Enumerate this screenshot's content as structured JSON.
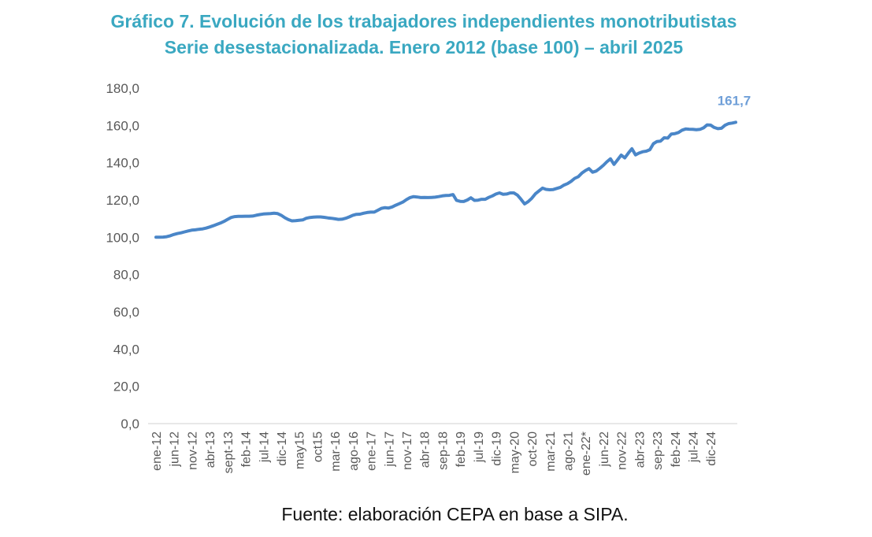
{
  "chart_data": {
    "type": "line",
    "title": "Gráfico 7. Evolución de los trabajadores independientes monotributistas",
    "subtitle": "Serie desestacionalizada. Enero 2012 (base 100) – abril 2025",
    "xlabel": "",
    "ylabel": "",
    "ylim": [
      0,
      180
    ],
    "y_ticks": [
      "0,0",
      "20,0",
      "40,0",
      "60,0",
      "80,0",
      "100,0",
      "120,0",
      "140,0",
      "160,0",
      "180,0"
    ],
    "x_tick_labels": [
      "ene-12",
      "jun-12",
      "nov-12",
      "abr-13",
      "sept-13",
      "feb-14",
      "jul-14",
      "dic-14",
      "may15",
      "oct15",
      "mar-16",
      "ago-16",
      "ene-17",
      "jun-17",
      "nov-17",
      "abr-18",
      "sep-18",
      "feb-19",
      "jul-19",
      "dic-19",
      "may-20",
      "oct-20",
      "mar-21",
      "ago-21",
      "ene-22*",
      "jun-22",
      "nov-22",
      "abr-23",
      "sep-23",
      "feb-24",
      "jul-24",
      "dic-24"
    ],
    "grid": false,
    "legend": "none",
    "series": [
      {
        "color": "#4a86c8",
        "values": [
          100.0,
          100.0,
          100.1,
          100.3,
          100.8,
          101.5,
          102.0,
          102.4,
          102.9,
          103.4,
          103.8,
          104.0,
          104.3,
          104.5,
          104.9,
          105.5,
          106.2,
          106.9,
          107.6,
          108.5,
          109.6,
          110.6,
          111.1,
          111.2,
          111.2,
          111.3,
          111.3,
          111.4,
          111.8,
          112.2,
          112.5,
          112.6,
          112.7,
          112.9,
          112.7,
          111.8,
          110.5,
          109.5,
          108.8,
          108.9,
          109.1,
          109.3,
          110.2,
          110.6,
          110.8,
          110.9,
          110.9,
          110.7,
          110.4,
          110.2,
          109.9,
          109.6,
          109.7,
          110.2,
          110.9,
          111.8,
          112.3,
          112.4,
          112.9,
          113.3,
          113.5,
          113.5,
          114.5,
          115.5,
          115.9,
          115.7,
          116.3,
          117.2,
          118.0,
          118.9,
          120.2,
          121.3,
          121.8,
          121.6,
          121.3,
          121.4,
          121.3,
          121.4,
          121.5,
          121.8,
          122.2,
          122.4,
          122.5,
          122.9,
          119.8,
          119.3,
          119.2,
          120.0,
          121.2,
          119.8,
          119.9,
          120.4,
          120.4,
          121.4,
          122.2,
          123.2,
          123.8,
          123.1,
          123.2,
          123.8,
          123.8,
          122.6,
          120.4,
          117.9,
          119.1,
          120.9,
          123.3,
          124.8,
          126.4,
          125.7,
          125.5,
          125.6,
          126.2,
          126.8,
          128.0,
          128.8,
          130.0,
          131.6,
          132.5,
          134.4,
          135.8,
          136.8,
          134.9,
          135.5,
          137.0,
          138.6,
          140.5,
          142.1,
          139.1,
          141.6,
          144.1,
          142.6,
          145.2,
          147.5,
          144.2,
          145.2,
          145.9,
          146.2,
          147.0,
          150.2,
          151.4,
          151.6,
          153.4,
          153.2,
          155.4,
          155.6,
          156.2,
          157.5,
          158.1,
          158.0,
          157.9,
          157.7,
          157.9,
          158.7,
          160.3,
          160.2,
          158.9,
          158.3,
          158.5,
          160.1,
          161.0,
          161.3,
          161.7
        ]
      }
    ],
    "annotations": [
      {
        "label": "161,7",
        "color": "#6f9fd8"
      }
    ]
  },
  "footer": {
    "source": "Fuente: elaboración CEPA en base a SIPA."
  }
}
